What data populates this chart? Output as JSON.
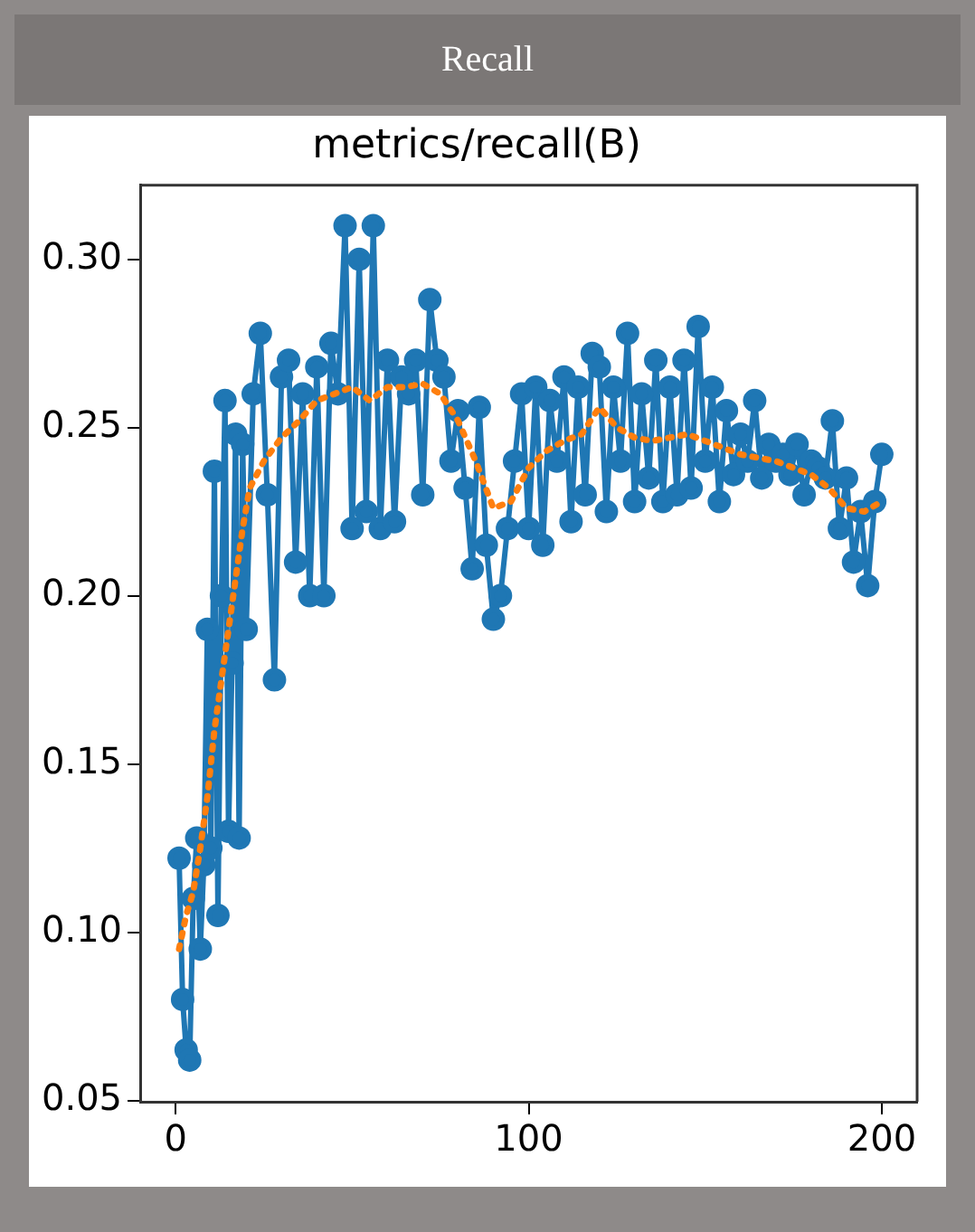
{
  "chart_data": {
    "type": "line",
    "title": "metrics/recall(B)",
    "annotations": [
      "Recall"
    ],
    "xlim": [
      -10,
      210
    ],
    "xticks": [
      0,
      100,
      200
    ],
    "ylim": [
      0.0496,
      0.322
    ],
    "yticks": [
      {
        "value": 0.05,
        "label": "0.05"
      },
      {
        "value": 0.1,
        "label": "0.10"
      },
      {
        "value": 0.15,
        "label": "0.15"
      },
      {
        "value": 0.2,
        "label": "0.20"
      },
      {
        "value": 0.25,
        "label": "0.25"
      },
      {
        "value": 0.3,
        "label": "0.30"
      }
    ],
    "grid": false,
    "legend": false,
    "series": [
      {
        "color": "#1f77b4",
        "marker": "circle",
        "line_style": "solid",
        "x": [
          1,
          2,
          3,
          4,
          5,
          6,
          7,
          8,
          9,
          10,
          11,
          12,
          13,
          14,
          15,
          16,
          17,
          18,
          19,
          20,
          22,
          24,
          26,
          28,
          30,
          32,
          34,
          36,
          38,
          40,
          42,
          44,
          46,
          48,
          50,
          52,
          54,
          56,
          58,
          60,
          62,
          64,
          66,
          68,
          70,
          72,
          74,
          76,
          78,
          80,
          82,
          84,
          86,
          88,
          90,
          92,
          94,
          96,
          98,
          100,
          102,
          104,
          106,
          108,
          110,
          112,
          114,
          116,
          118,
          120,
          122,
          124,
          126,
          128,
          130,
          132,
          134,
          136,
          138,
          140,
          142,
          144,
          146,
          148,
          150,
          152,
          154,
          156,
          158,
          160,
          162,
          164,
          166,
          168,
          170,
          172,
          174,
          176,
          178,
          180,
          182,
          184,
          186,
          188,
          190,
          192,
          194,
          196,
          198,
          200
        ],
        "values": [
          0.122,
          0.08,
          0.065,
          0.062,
          0.11,
          0.128,
          0.095,
          0.12,
          0.19,
          0.125,
          0.237,
          0.105,
          0.2,
          0.258,
          0.13,
          0.18,
          0.248,
          0.128,
          0.245,
          0.19,
          0.26,
          0.278,
          0.23,
          0.175,
          0.265,
          0.27,
          0.21,
          0.26,
          0.2,
          0.268,
          0.2,
          0.275,
          0.26,
          0.31,
          0.22,
          0.3,
          0.225,
          0.31,
          0.22,
          0.27,
          0.222,
          0.265,
          0.26,
          0.27,
          0.23,
          0.288,
          0.27,
          0.265,
          0.24,
          0.255,
          0.232,
          0.208,
          0.256,
          0.215,
          0.193,
          0.2,
          0.22,
          0.24,
          0.26,
          0.22,
          0.262,
          0.215,
          0.258,
          0.24,
          0.265,
          0.222,
          0.262,
          0.23,
          0.272,
          0.268,
          0.225,
          0.262,
          0.24,
          0.278,
          0.228,
          0.26,
          0.235,
          0.27,
          0.228,
          0.262,
          0.23,
          0.27,
          0.232,
          0.28,
          0.24,
          0.262,
          0.228,
          0.255,
          0.236,
          0.248,
          0.24,
          0.258,
          0.235,
          0.245,
          0.24,
          0.242,
          0.236,
          0.245,
          0.23,
          0.24,
          0.238,
          0.235,
          0.252,
          0.22,
          0.235,
          0.21,
          0.225,
          0.203,
          0.228,
          0.242
        ]
      },
      {
        "color": "#ff7f0e",
        "marker": "none",
        "line_style": "dotted",
        "x": [
          1,
          3,
          5,
          7,
          9,
          11,
          13,
          15,
          17,
          19,
          21,
          25,
          30,
          35,
          40,
          45,
          50,
          55,
          60,
          65,
          70,
          75,
          80,
          85,
          90,
          95,
          100,
          105,
          110,
          115,
          120,
          125,
          130,
          135,
          140,
          145,
          150,
          155,
          160,
          165,
          170,
          175,
          180,
          185,
          190,
          195,
          200
        ],
        "values": [
          0.095,
          0.105,
          0.112,
          0.125,
          0.14,
          0.16,
          0.175,
          0.19,
          0.205,
          0.22,
          0.232,
          0.24,
          0.247,
          0.252,
          0.258,
          0.26,
          0.262,
          0.258,
          0.262,
          0.262,
          0.263,
          0.26,
          0.252,
          0.24,
          0.226,
          0.228,
          0.238,
          0.243,
          0.246,
          0.248,
          0.256,
          0.25,
          0.247,
          0.246,
          0.247,
          0.248,
          0.246,
          0.244,
          0.242,
          0.241,
          0.24,
          0.238,
          0.236,
          0.232,
          0.226,
          0.225,
          0.228
        ]
      }
    ]
  }
}
